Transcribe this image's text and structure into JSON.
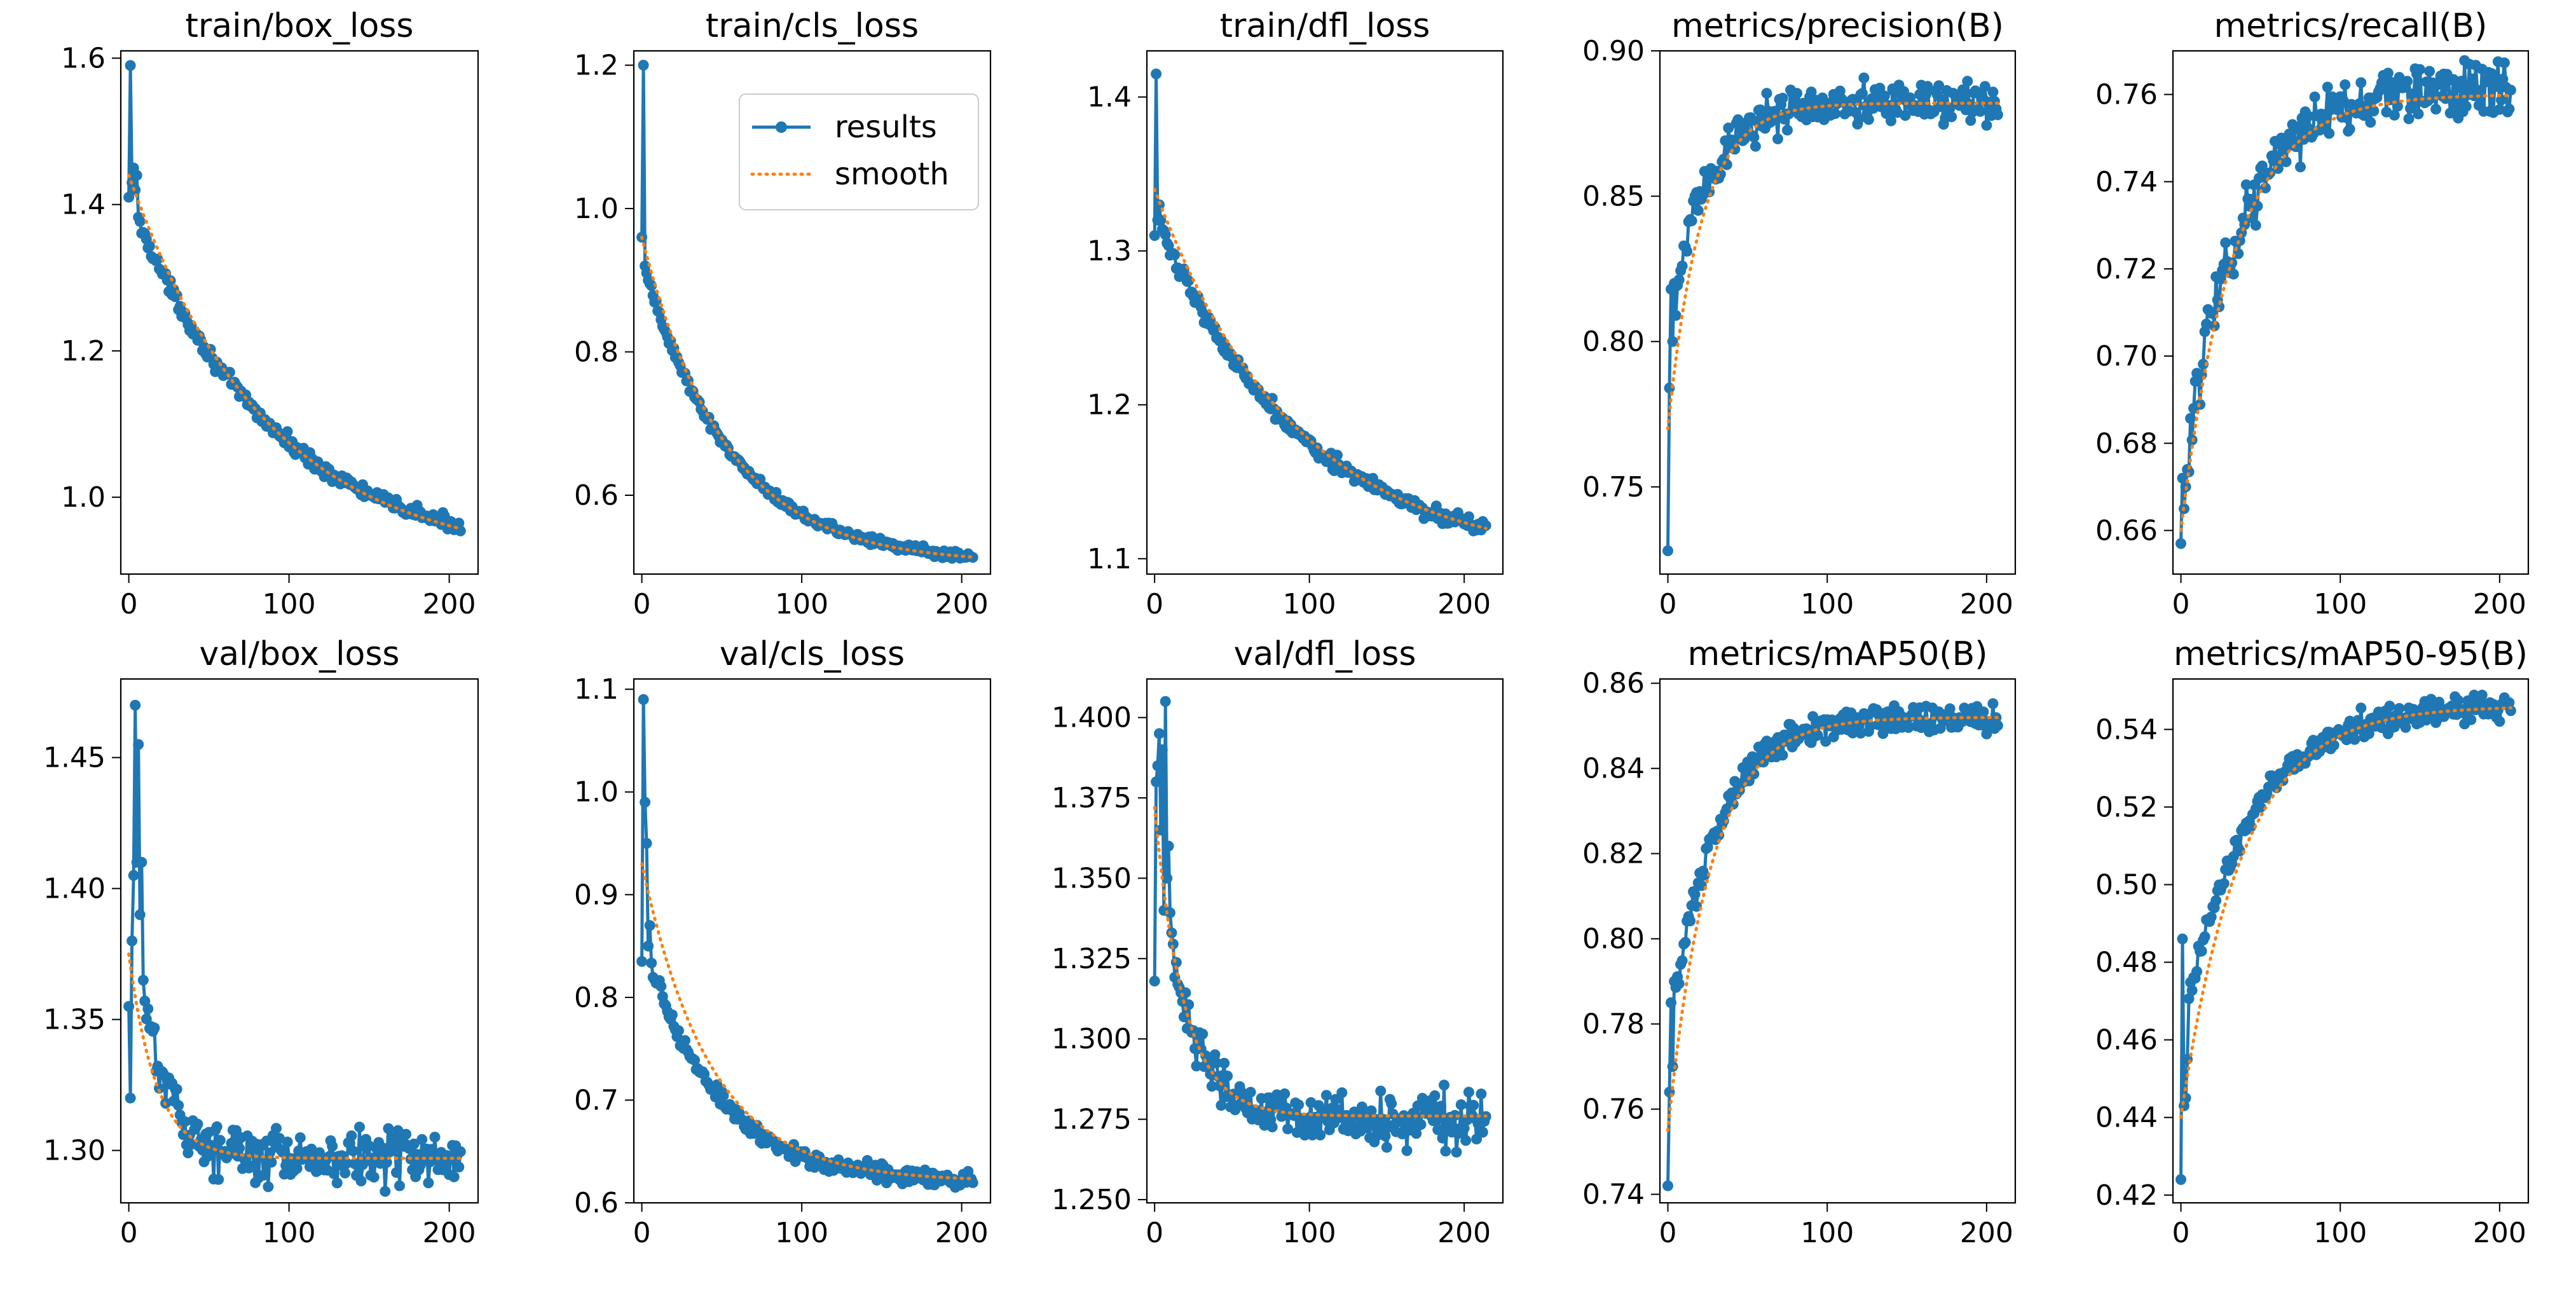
{
  "colors": {
    "results": "#1f77b4",
    "smooth": "#ff7f0e",
    "axis": "#000000",
    "background": "#ffffff"
  },
  "legend": {
    "results_label": "results",
    "smooth_label": "smooth",
    "location": "upper right of train/cls_loss"
  },
  "chart_data": [
    {
      "type": "line",
      "title": "train/box_loss",
      "xlim": [
        -5,
        218
      ],
      "ylim": [
        0.895,
        1.61
      ],
      "xticks": [
        0,
        100,
        200
      ],
      "xtick_labels": [
        "0",
        "100",
        "200"
      ],
      "yticks": [
        1.0,
        1.2,
        1.4,
        1.6
      ],
      "ytick_labels": [
        "1.0",
        "1.2",
        "1.4",
        "1.6"
      ],
      "epochs": 208,
      "start": 1.41,
      "end": 0.91,
      "tau": 90,
      "noise": 0.006,
      "anchors": [
        [
          0,
          1.41
        ],
        [
          1,
          1.59
        ],
        [
          2,
          1.43
        ],
        [
          3,
          1.45
        ],
        [
          4,
          1.42
        ],
        [
          5,
          1.44
        ]
      ],
      "smooth_start": 1.44,
      "smooth_end": 0.91,
      "series": [
        "results",
        "smooth"
      ]
    },
    {
      "type": "line",
      "title": "train/cls_loss",
      "xlim": [
        -5,
        218
      ],
      "ylim": [
        0.49,
        1.22
      ],
      "xticks": [
        0,
        100,
        200
      ],
      "xtick_labels": [
        "0",
        "100",
        "200"
      ],
      "yticks": [
        0.6,
        0.8,
        1.0,
        1.2
      ],
      "ytick_labels": [
        "0.6",
        "0.8",
        "1.0",
        "1.2"
      ],
      "epochs": 208,
      "start": 0.93,
      "end": 0.505,
      "tau": 55,
      "noise": 0.004,
      "anchors": [
        [
          0,
          0.96
        ],
        [
          1,
          1.2
        ],
        [
          2,
          0.92
        ],
        [
          3,
          0.91
        ],
        [
          4,
          0.9
        ]
      ],
      "smooth_start": 0.96,
      "smooth_end": 0.505,
      "series": [
        "results",
        "smooth"
      ],
      "legend": true
    },
    {
      "type": "line",
      "title": "train/dfl_loss",
      "xlim": [
        -5,
        225
      ],
      "ylim": [
        1.09,
        1.43
      ],
      "xticks": [
        0,
        100,
        200
      ],
      "xtick_labels": [
        "0",
        "100",
        "200"
      ],
      "yticks": [
        1.1,
        1.2,
        1.3,
        1.4
      ],
      "ytick_labels": [
        "1.1",
        "1.2",
        "1.3",
        "1.4"
      ],
      "epochs": 215,
      "start": 1.325,
      "end": 1.095,
      "tau": 95,
      "noise": 0.003,
      "anchors": [
        [
          0,
          1.31
        ],
        [
          1,
          1.415
        ],
        [
          2,
          1.32
        ],
        [
          3,
          1.33
        ],
        [
          4,
          1.32
        ]
      ],
      "smooth_start": 1.34,
      "smooth_end": 1.097,
      "series": [
        "results",
        "smooth"
      ]
    },
    {
      "type": "line",
      "title": "metrics/precision(B)",
      "xlim": [
        -5,
        218
      ],
      "ylim": [
        0.72,
        0.9
      ],
      "xticks": [
        0,
        100,
        200
      ],
      "xtick_labels": [
        "0",
        "100",
        "200"
      ],
      "yticks": [
        0.75,
        0.8,
        0.85,
        0.9
      ],
      "ytick_labels": [
        "0.75",
        "0.80",
        "0.85",
        "0.90"
      ],
      "epochs": 208,
      "start": 0.8,
      "end": 0.882,
      "tau": 22,
      "noise": 0.005,
      "anchors": [
        [
          0,
          0.728
        ],
        [
          1,
          0.784
        ],
        [
          2,
          0.818
        ],
        [
          3,
          0.8
        ],
        [
          4,
          0.82
        ]
      ],
      "smooth_start": 0.77,
      "smooth_end": 0.882,
      "series": [
        "results",
        "smooth"
      ]
    },
    {
      "type": "line",
      "title": "metrics/recall(B)",
      "xlim": [
        -5,
        218
      ],
      "ylim": [
        0.65,
        0.77
      ],
      "xticks": [
        0,
        100,
        200
      ],
      "xtick_labels": [
        "0",
        "100",
        "200"
      ],
      "yticks": [
        0.66,
        0.68,
        0.7,
        0.72,
        0.74,
        0.76
      ],
      "ytick_labels": [
        "0.66",
        "0.68",
        "0.70",
        "0.72",
        "0.74",
        "0.76"
      ],
      "epochs": 208,
      "start": 0.668,
      "end": 0.762,
      "tau": 35,
      "noise": 0.004,
      "anchors": [
        [
          0,
          0.657
        ],
        [
          1,
          0.672
        ],
        [
          2,
          0.665
        ],
        [
          3,
          0.67
        ],
        [
          4,
          0.674
        ]
      ],
      "smooth_start": 0.66,
      "smooth_end": 0.76,
      "series": [
        "results",
        "smooth"
      ]
    },
    {
      "type": "line",
      "title": "val/box_loss",
      "xlim": [
        -5,
        218
      ],
      "ylim": [
        1.28,
        1.48
      ],
      "xticks": [
        0,
        100,
        200
      ],
      "xtick_labels": [
        "0",
        "100",
        "200"
      ],
      "yticks": [
        1.3,
        1.35,
        1.4,
        1.45
      ],
      "ytick_labels": [
        "1.30",
        "1.35",
        "1.40",
        "1.45"
      ],
      "epochs": 208,
      "start": 1.4,
      "end": 1.297,
      "tau": 18,
      "noise": 0.006,
      "anchors": [
        [
          0,
          1.355
        ],
        [
          1,
          1.32
        ],
        [
          2,
          1.38
        ],
        [
          3,
          1.405
        ],
        [
          4,
          1.47
        ],
        [
          5,
          1.41
        ],
        [
          6,
          1.455
        ],
        [
          7,
          1.39
        ],
        [
          8,
          1.41
        ],
        [
          9,
          1.365
        ]
      ],
      "smooth_start": 1.375,
      "smooth_end": 1.297,
      "series": [
        "results",
        "smooth"
      ]
    },
    {
      "type": "line",
      "title": "val/cls_loss",
      "xlim": [
        -5,
        218
      ],
      "ylim": [
        0.6,
        1.11
      ],
      "xticks": [
        0,
        100,
        200
      ],
      "xtick_labels": [
        "0",
        "100",
        "200"
      ],
      "yticks": [
        0.6,
        0.7,
        0.8,
        0.9,
        1.0,
        1.1
      ],
      "ytick_labels": [
        "0.6",
        "0.7",
        "0.8",
        "0.9",
        "1.0",
        "1.1"
      ],
      "epochs": 208,
      "start": 0.86,
      "end": 0.62,
      "tau": 45,
      "noise": 0.005,
      "anchors": [
        [
          0,
          0.835
        ],
        [
          1,
          1.09
        ],
        [
          2,
          0.99
        ],
        [
          3,
          0.95
        ],
        [
          4,
          0.85
        ],
        [
          5,
          0.87
        ]
      ],
      "smooth_start": 0.93,
      "smooth_end": 0.621,
      "series": [
        "results",
        "smooth"
      ]
    },
    {
      "type": "line",
      "title": "val/dfl_loss",
      "xlim": [
        -5,
        225
      ],
      "ylim": [
        1.249,
        1.412
      ],
      "xticks": [
        0,
        100,
        200
      ],
      "xtick_labels": [
        "0",
        "100",
        "200"
      ],
      "yticks": [
        1.25,
        1.275,
        1.3,
        1.325,
        1.35,
        1.375,
        1.4
      ],
      "ytick_labels": [
        "1.250",
        "1.275",
        "1.300",
        "1.325",
        "1.350",
        "1.375",
        "1.400"
      ],
      "epochs": 215,
      "start": 1.37,
      "end": 1.275,
      "tau": 20,
      "noise": 0.005,
      "anchors": [
        [
          0,
          1.318
        ],
        [
          1,
          1.38
        ],
        [
          2,
          1.385
        ],
        [
          3,
          1.395
        ],
        [
          4,
          1.365
        ],
        [
          5,
          1.39
        ],
        [
          6,
          1.34
        ],
        [
          7,
          1.405
        ],
        [
          8,
          1.35
        ],
        [
          9,
          1.36
        ]
      ],
      "smooth_start": 1.372,
      "smooth_end": 1.276,
      "series": [
        "results",
        "smooth"
      ]
    },
    {
      "type": "line",
      "title": "metrics/mAP50(B)",
      "xlim": [
        -5,
        218
      ],
      "ylim": [
        0.738,
        0.861
      ],
      "xticks": [
        0,
        100,
        200
      ],
      "xtick_labels": [
        "0",
        "100",
        "200"
      ],
      "yticks": [
        0.74,
        0.76,
        0.78,
        0.8,
        0.82,
        0.84,
        0.86
      ],
      "ytick_labels": [
        "0.74",
        "0.76",
        "0.78",
        "0.80",
        "0.82",
        "0.84",
        "0.86"
      ],
      "epochs": 208,
      "start": 0.775,
      "end": 0.852,
      "tau": 28,
      "noise": 0.002,
      "anchors": [
        [
          0,
          0.742
        ],
        [
          1,
          0.764
        ],
        [
          2,
          0.785
        ],
        [
          3,
          0.77
        ],
        [
          4,
          0.79
        ]
      ],
      "smooth_start": 0.755,
      "smooth_end": 0.852,
      "series": [
        "results",
        "smooth"
      ]
    },
    {
      "type": "line",
      "title": "metrics/mAP50-95(B)",
      "xlim": [
        -5,
        218
      ],
      "ylim": [
        0.418,
        0.553
      ],
      "xticks": [
        0,
        100,
        200
      ],
      "xtick_labels": [
        "0",
        "100",
        "200"
      ],
      "yticks": [
        0.42,
        0.44,
        0.46,
        0.48,
        0.5,
        0.52,
        0.54
      ],
      "ytick_labels": [
        "0.42",
        "0.44",
        "0.46",
        "0.48",
        "0.50",
        "0.52",
        "0.54"
      ],
      "epochs": 208,
      "start": 0.46,
      "end": 0.546,
      "tau": 40,
      "noise": 0.002,
      "anchors": [
        [
          0,
          0.424
        ],
        [
          1,
          0.486
        ],
        [
          2,
          0.443
        ],
        [
          3,
          0.445
        ],
        [
          4,
          0.455
        ]
      ],
      "smooth_start": 0.44,
      "smooth_end": 0.546,
      "series": [
        "results",
        "smooth"
      ]
    }
  ]
}
